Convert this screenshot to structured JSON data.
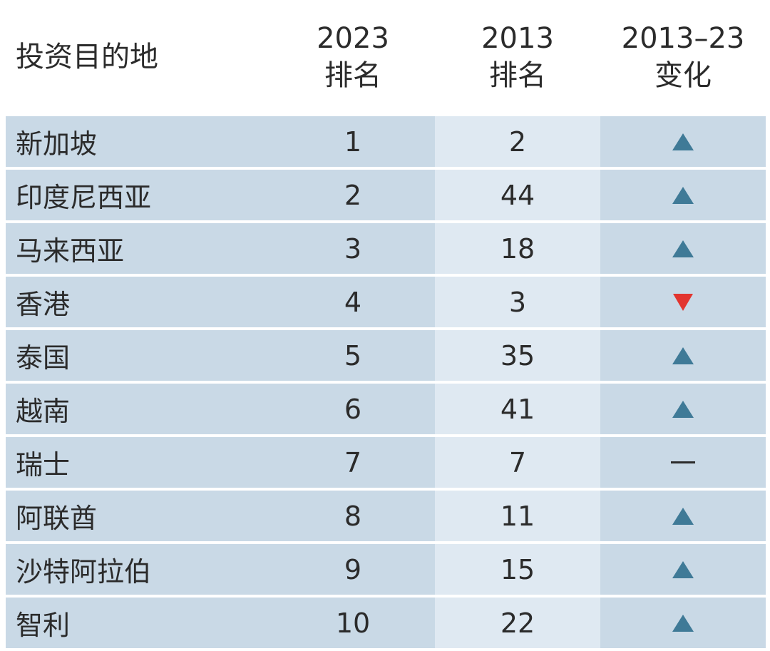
{
  "header": {
    "destination": "投资目的地",
    "col_2023_line1": "2023",
    "col_2023_line2": "排名",
    "col_2013_line1": "2013",
    "col_2013_line2": "排名",
    "col_change_line1": "2013–23",
    "col_change_line2": "变化"
  },
  "colors": {
    "up": "#3f7a97",
    "down": "#e2352f",
    "row_bg": "#c9d9e6",
    "row_bg_light": "#dfe9f2"
  },
  "chart_data": {
    "type": "table",
    "columns": [
      "投资目的地",
      "2023 排名",
      "2013 排名",
      "2013–23 变化"
    ],
    "rows": [
      {
        "name": "新加坡",
        "rank_2023": "1",
        "rank_2013": "2",
        "change": "up-triangle-icon"
      },
      {
        "name": "印度尼西亚",
        "rank_2023": "2",
        "rank_2013": "44",
        "change": "up-triangle-icon"
      },
      {
        "name": "马来西亚",
        "rank_2023": "3",
        "rank_2013": "18",
        "change": "up-triangle-icon"
      },
      {
        "name": "香港",
        "rank_2023": "4",
        "rank_2013": "3",
        "change": "down-triangle-icon"
      },
      {
        "name": "泰国",
        "rank_2023": "5",
        "rank_2013": "35",
        "change": "up-triangle-icon"
      },
      {
        "name": "越南",
        "rank_2023": "6",
        "rank_2013": "41",
        "change": "up-triangle-icon"
      },
      {
        "name": "瑞士",
        "rank_2023": "7",
        "rank_2013": "7",
        "change": "no-change-dash-icon"
      },
      {
        "name": "阿联酋",
        "rank_2023": "8",
        "rank_2013": "11",
        "change": "up-triangle-icon"
      },
      {
        "name": "沙特阿拉伯",
        "rank_2023": "9",
        "rank_2013": "15",
        "change": "up-triangle-icon"
      },
      {
        "name": "智利",
        "rank_2023": "10",
        "rank_2013": "22",
        "change": "up-triangle-icon"
      }
    ]
  }
}
